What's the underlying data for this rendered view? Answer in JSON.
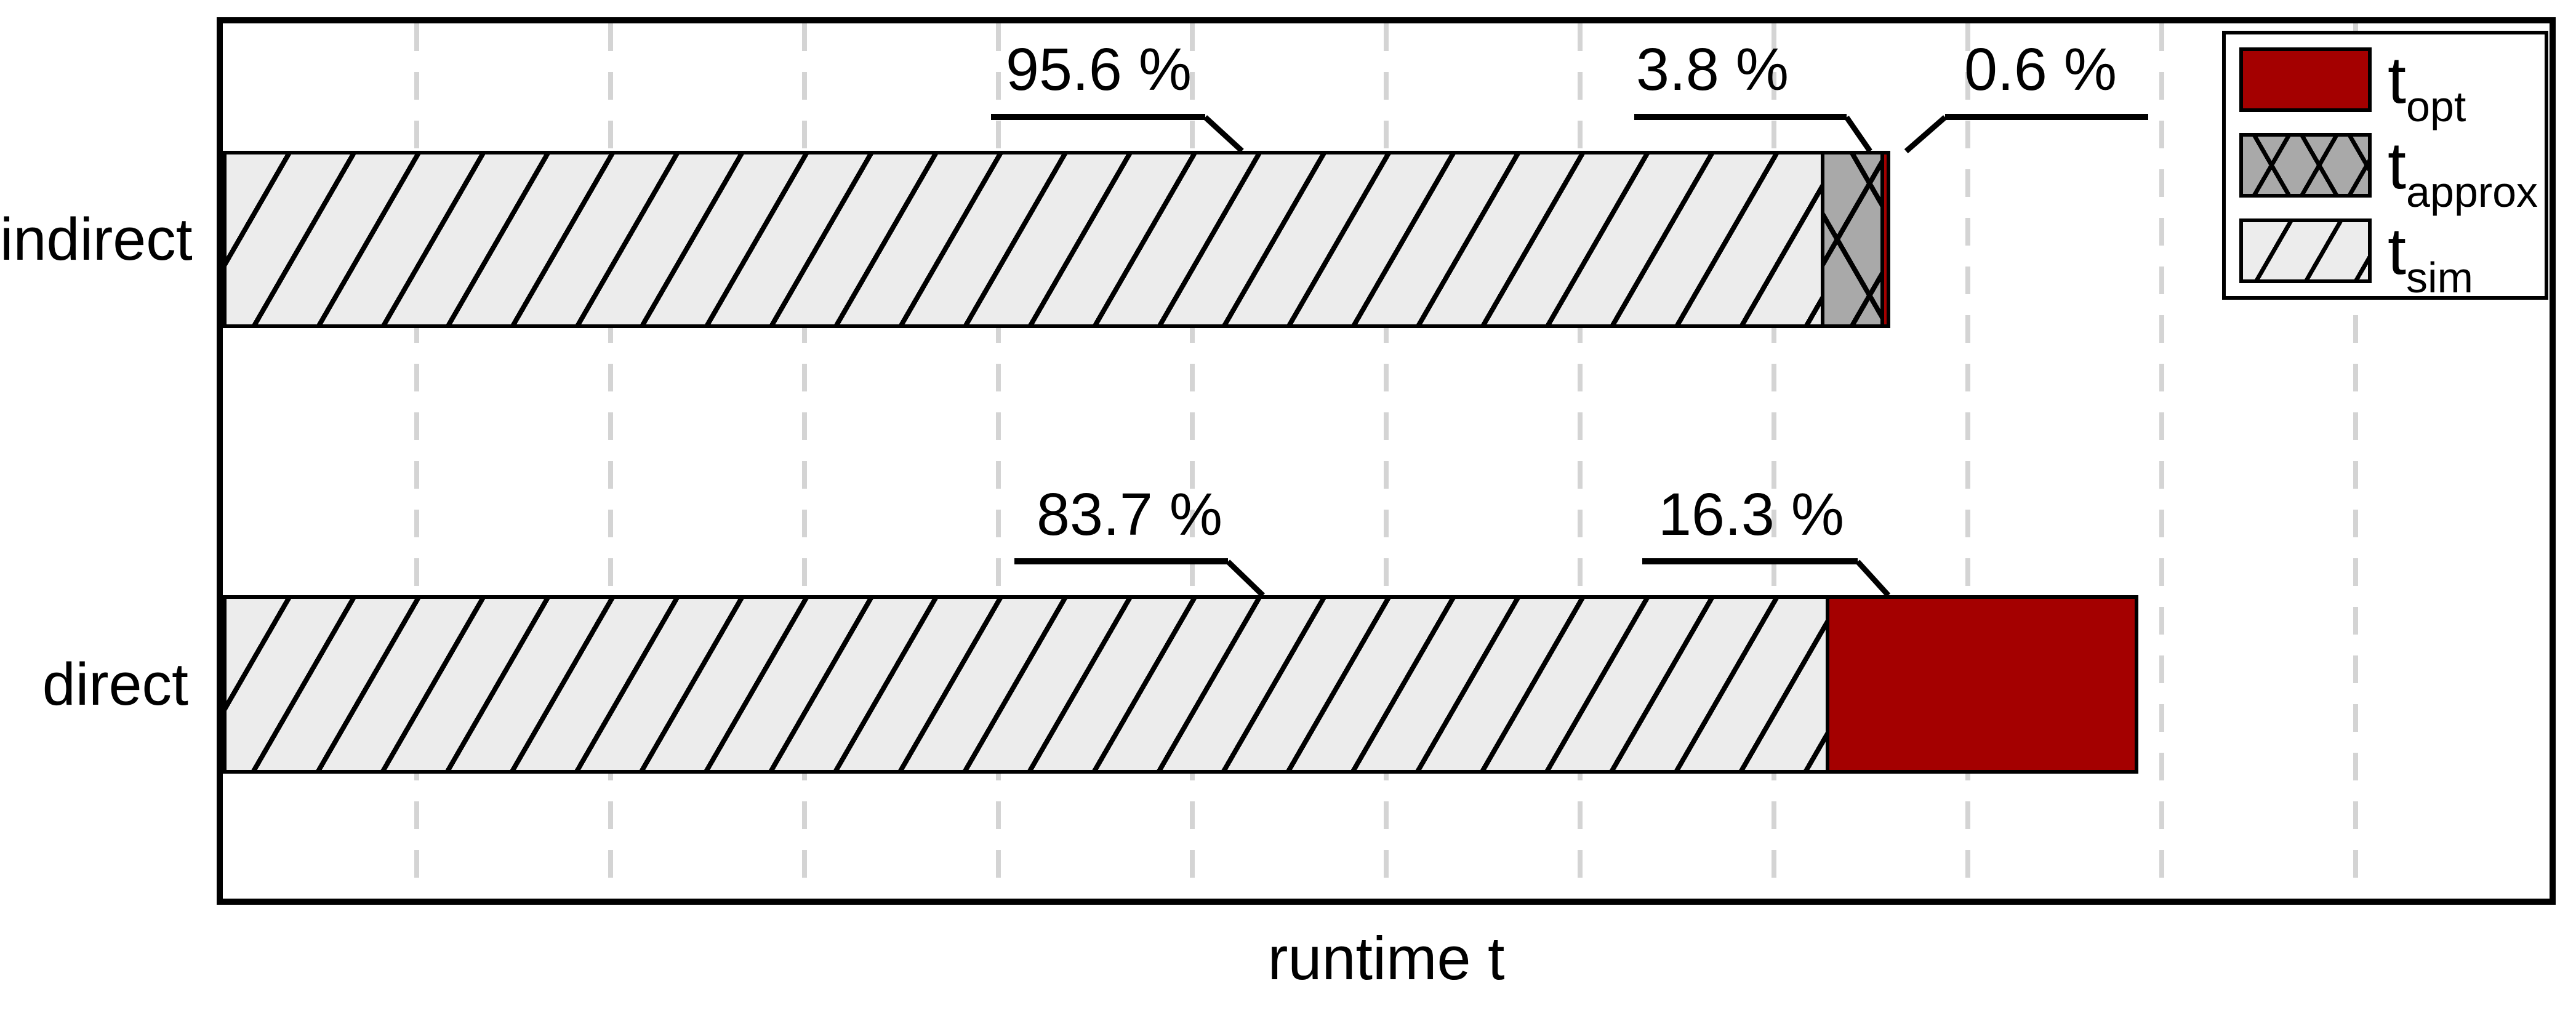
{
  "chart_data": {
    "type": "bar",
    "orientation": "horizontal-stacked",
    "categories": [
      "indirect",
      "direct"
    ],
    "series": [
      {
        "name": "t_sim",
        "pattern": "diag",
        "fill": "#ececec",
        "values_pct": [
          95.6,
          83.7
        ]
      },
      {
        "name": "t_approx",
        "pattern": "cross",
        "fill": "#a9a9a9",
        "values_pct": [
          3.8,
          0
        ]
      },
      {
        "name": "t_opt",
        "pattern": "solid",
        "fill": "#a40000",
        "values_pct": [
          0.6,
          16.3
        ]
      }
    ],
    "bar_total_fraction_of_axis": [
      0.72,
      0.825
    ],
    "xlabel": "runtime t",
    "x_axis": {
      "tick_labels_visible": false,
      "grid_divisions": 12,
      "grid_style": "dashed"
    },
    "annotations": [
      {
        "bar": "indirect",
        "segment": "t_sim",
        "text": "95.6 %"
      },
      {
        "bar": "indirect",
        "segment": "t_approx",
        "text": "3.8 %"
      },
      {
        "bar": "indirect",
        "segment": "t_opt",
        "text": "0.6 %"
      },
      {
        "bar": "direct",
        "segment": "t_sim",
        "text": "83.7 %"
      },
      {
        "bar": "direct",
        "segment": "t_opt",
        "text": "16.3 %"
      }
    ],
    "legend": {
      "position": "top-right",
      "entries": [
        {
          "label_base": "t",
          "label_sub": "opt",
          "pattern": "solid",
          "fill": "#a40000"
        },
        {
          "label_base": "t",
          "label_sub": "approx",
          "pattern": "cross",
          "fill": "#a9a9a9"
        },
        {
          "label_base": "t",
          "label_sub": "sim",
          "pattern": "diag",
          "fill": "#ececec"
        }
      ]
    },
    "colors": {
      "t_opt": "#a40000",
      "t_approx": "#a9a9a9",
      "t_sim": "#ececec",
      "grid": "#d4d4d4",
      "frame": "#000000"
    }
  }
}
